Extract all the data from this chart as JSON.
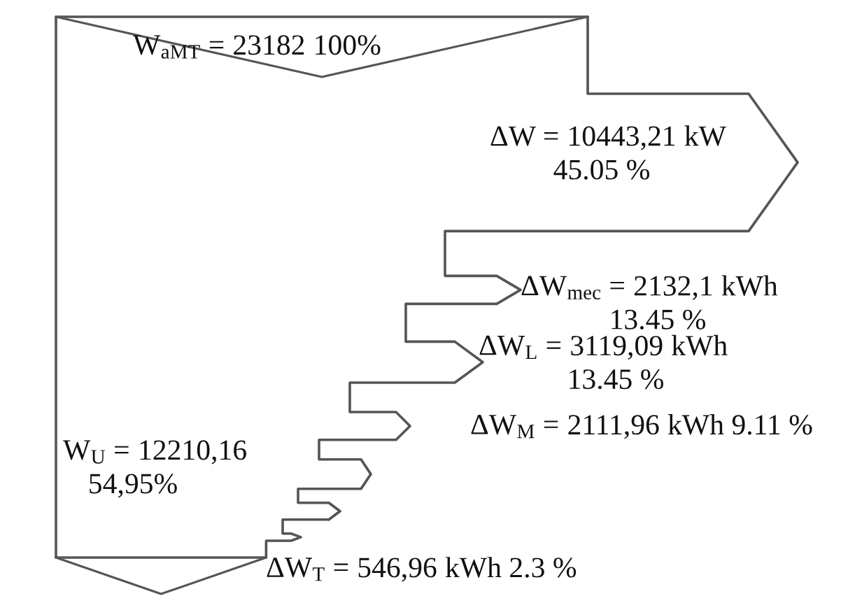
{
  "chart_data": {
    "type": "other",
    "categories": [
      "W$_{aMT}$ =",
      "ΔW =",
      "ΔW$_{mec}$ =",
      "ΔW$_{L}$ =",
      "ΔW$_{M}$ =",
      "ΔW$_{T}$ =",
      "W$_{U}$ ="
    ],
    "values": [
      23182,
      10443.21,
      2132.1,
      3119.09,
      2111.96,
      546.96,
      12210.16
    ],
    "value_labels": [
      "23182",
      "10443,21",
      "2132,1",
      "3119,09",
      "2111,96",
      "546,96",
      "12210,16"
    ],
    "annotations": [
      "100%",
      "kW\n45.05 %",
      "kWh\n13.45 %",
      "kWh\n13.45 %",
      "kWh 9.11 %",
      "kWh 2.3 %",
      "\n54,95%"
    ]
  }
}
